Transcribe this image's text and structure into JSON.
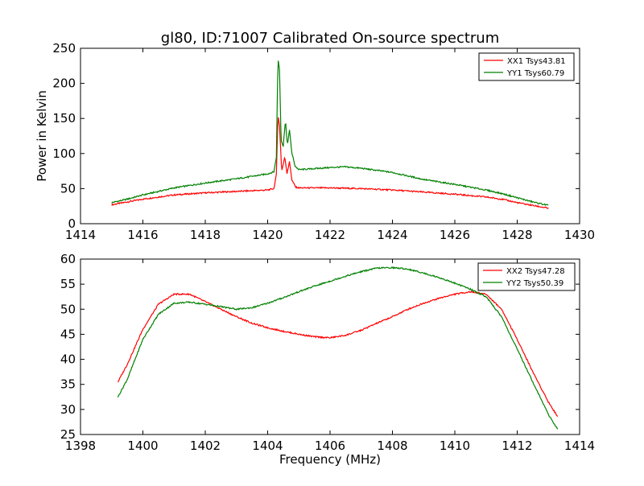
{
  "figure": {
    "title": "gl80, ID:71007 Calibrated On-source spectrum",
    "ylabel": "Power in Kelvin",
    "xlabel": "Frequency (MHz)"
  },
  "chart_data": [
    {
      "type": "line",
      "title": "gl80, ID:71007 Calibrated On-source spectrum",
      "xlabel": "",
      "ylabel": "Power in Kelvin",
      "xlim": [
        1414,
        1430
      ],
      "ylim": [
        0,
        250
      ],
      "xticks": [
        1414,
        1416,
        1418,
        1420,
        1422,
        1424,
        1426,
        1428,
        1430
      ],
      "yticks": [
        0,
        50,
        100,
        150,
        200,
        250
      ],
      "grid": false,
      "legend": "top-right",
      "series": [
        {
          "name": "XX1 Tsys43.81",
          "color": "#ff0000",
          "points": [
            [
              1415,
              27
            ],
            [
              1415.5,
              31
            ],
            [
              1416,
              35
            ],
            [
              1416.5,
              38
            ],
            [
              1417,
              41
            ],
            [
              1418,
              44
            ],
            [
              1419,
              46
            ],
            [
              1420,
              48
            ],
            [
              1420.2,
              50
            ],
            [
              1420.28,
              70
            ],
            [
              1420.33,
              155
            ],
            [
              1420.38,
              140
            ],
            [
              1420.45,
              75
            ],
            [
              1420.55,
              95
            ],
            [
              1420.62,
              72
            ],
            [
              1420.7,
              88
            ],
            [
              1420.78,
              62
            ],
            [
              1420.9,
              52
            ],
            [
              1421,
              51
            ],
            [
              1422,
              51
            ],
            [
              1423,
              50
            ],
            [
              1424,
              48
            ],
            [
              1425,
              45
            ],
            [
              1426,
              42
            ],
            [
              1427,
              38
            ],
            [
              1427.5,
              35
            ],
            [
              1428,
              30
            ],
            [
              1428.5,
              26
            ],
            [
              1429,
              22
            ]
          ]
        },
        {
          "name": "YY1 Tsys60.79",
          "color": "#008000",
          "points": [
            [
              1415,
              30
            ],
            [
              1415.5,
              35
            ],
            [
              1416,
              41
            ],
            [
              1416.5,
              46
            ],
            [
              1417,
              51
            ],
            [
              1418,
              58
            ],
            [
              1419,
              64
            ],
            [
              1420,
              71
            ],
            [
              1420.2,
              74
            ],
            [
              1420.28,
              95
            ],
            [
              1420.33,
              236
            ],
            [
              1420.38,
              220
            ],
            [
              1420.43,
              120
            ],
            [
              1420.5,
              110
            ],
            [
              1420.57,
              148
            ],
            [
              1420.63,
              112
            ],
            [
              1420.7,
              133
            ],
            [
              1420.78,
              100
            ],
            [
              1420.88,
              82
            ],
            [
              1421,
              77
            ],
            [
              1422,
              80
            ],
            [
              1422.5,
              81
            ],
            [
              1423,
              79
            ],
            [
              1424,
              73
            ],
            [
              1425,
              63
            ],
            [
              1426,
              56
            ],
            [
              1427,
              48
            ],
            [
              1427.5,
              43
            ],
            [
              1428,
              37
            ],
            [
              1428.5,
              31
            ],
            [
              1429,
              26
            ]
          ]
        }
      ]
    },
    {
      "type": "line",
      "title": "",
      "xlabel": "Frequency (MHz)",
      "ylabel": "",
      "xlim": [
        1398,
        1414
      ],
      "ylim": [
        25,
        60
      ],
      "xticks": [
        1398,
        1400,
        1402,
        1404,
        1406,
        1408,
        1410,
        1412,
        1414
      ],
      "yticks": [
        25,
        30,
        35,
        40,
        45,
        50,
        55,
        60
      ],
      "grid": false,
      "legend": "top-right",
      "series": [
        {
          "name": "XX2 Tsys47.28",
          "color": "#ff0000",
          "points": [
            [
              1399.2,
              35.5
            ],
            [
              1399.5,
              39
            ],
            [
              1400,
              46
            ],
            [
              1400.5,
              51
            ],
            [
              1401,
              53
            ],
            [
              1401.5,
              53
            ],
            [
              1402,
              51.5
            ],
            [
              1402.5,
              50
            ],
            [
              1403,
              48.5
            ],
            [
              1403.5,
              47.2
            ],
            [
              1404,
              46.3
            ],
            [
              1404.5,
              45.6
            ],
            [
              1405,
              45
            ],
            [
              1405.5,
              44.5
            ],
            [
              1406,
              44.3
            ],
            [
              1406.5,
              44.8
            ],
            [
              1407,
              45.8
            ],
            [
              1407.5,
              47.2
            ],
            [
              1408,
              48.5
            ],
            [
              1408.5,
              50
            ],
            [
              1409,
              51.2
            ],
            [
              1409.5,
              52.2
            ],
            [
              1410,
              53
            ],
            [
              1410.5,
              53.5
            ],
            [
              1411,
              53
            ],
            [
              1411.5,
              50
            ],
            [
              1412,
              44
            ],
            [
              1412.5,
              37.5
            ],
            [
              1413,
              31.5
            ],
            [
              1413.3,
              28.5
            ]
          ]
        },
        {
          "name": "YY2 Tsys50.39",
          "color": "#008000",
          "points": [
            [
              1399.2,
              32.5
            ],
            [
              1399.5,
              36
            ],
            [
              1400,
              44
            ],
            [
              1400.5,
              49
            ],
            [
              1401,
              51.2
            ],
            [
              1401.5,
              51.4
            ],
            [
              1402,
              51
            ],
            [
              1402.5,
              50.5
            ],
            [
              1403,
              50
            ],
            [
              1403.5,
              50.3
            ],
            [
              1404,
              51.2
            ],
            [
              1404.5,
              52.3
            ],
            [
              1405,
              53.5
            ],
            [
              1405.5,
              54.6
            ],
            [
              1406,
              55.6
            ],
            [
              1406.5,
              56.6
            ],
            [
              1407,
              57.5
            ],
            [
              1407.5,
              58.2
            ],
            [
              1408,
              58.3
            ],
            [
              1408.5,
              58
            ],
            [
              1409,
              57.2
            ],
            [
              1409.5,
              56.3
            ],
            [
              1410,
              55.2
            ],
            [
              1410.5,
              54
            ],
            [
              1411,
              52.5
            ],
            [
              1411.5,
              48.5
            ],
            [
              1412,
              42
            ],
            [
              1412.5,
              35.5
            ],
            [
              1413,
              29
            ],
            [
              1413.3,
              26
            ]
          ]
        }
      ]
    }
  ]
}
